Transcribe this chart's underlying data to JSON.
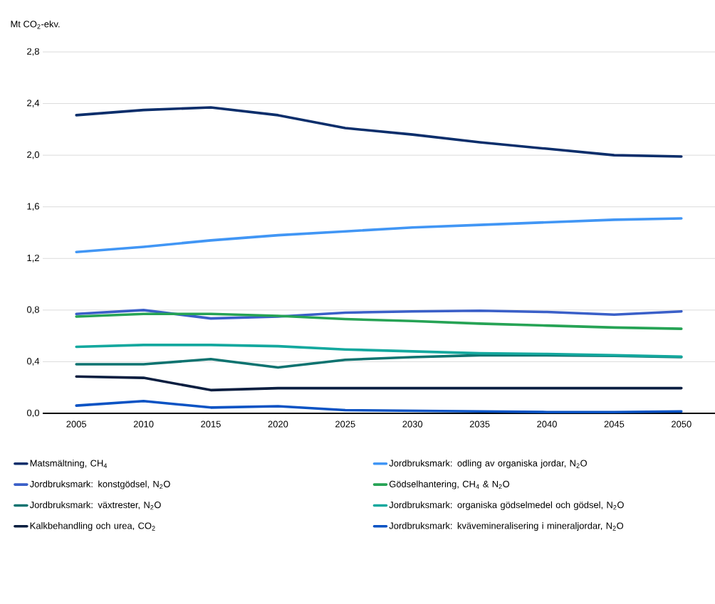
{
  "chart_data": {
    "type": "line",
    "ylabel": "Mt CO$_{2}$-ekv.",
    "categories": [
      "2005",
      "2010",
      "2015",
      "2020",
      "2025",
      "2030",
      "2035",
      "2040",
      "2045",
      "2050"
    ],
    "ylim": [
      0,
      2.8
    ],
    "yticks": [
      {
        "value": 0,
        "label": "0,0"
      },
      {
        "value": 0.4,
        "label": "0,4"
      },
      {
        "value": 0.8,
        "label": "0,8"
      },
      {
        "value": 1.2,
        "label": "1,2"
      },
      {
        "value": 1.6,
        "label": "1,6"
      },
      {
        "value": 2.0,
        "label": "2,0"
      },
      {
        "value": 2.4,
        "label": "2,4"
      },
      {
        "value": 2.8,
        "label": "2,8"
      }
    ],
    "grid": "y",
    "legend": "bottom",
    "marker": "none",
    "line_style": "solid",
    "series": [
      {
        "name": "Matsmältning, CH$_{4}$",
        "color": "#0b2e6b",
        "values": [
          2.31,
          2.35,
          2.37,
          2.31,
          2.21,
          2.16,
          2.1,
          2.05,
          2.0,
          1.99
        ]
      },
      {
        "name": "Jordbruksmark: odling av organiska jordar, N$_{2}$O",
        "color": "#4196f5",
        "values": [
          1.25,
          1.29,
          1.34,
          1.38,
          1.41,
          1.44,
          1.46,
          1.48,
          1.5,
          1.51
        ]
      },
      {
        "name": "Jordbruksmark: konstgödsel, N$_{2}$O",
        "color": "#3a5fc8",
        "values": [
          0.77,
          0.8,
          0.735,
          0.75,
          0.78,
          0.79,
          0.795,
          0.785,
          0.765,
          0.79
        ]
      },
      {
        "name": "Gödselhantering, CH$_{4}$ & N$_{2}$O",
        "color": "#26a355",
        "values": [
          0.75,
          0.77,
          0.77,
          0.755,
          0.73,
          0.715,
          0.695,
          0.68,
          0.665,
          0.655
        ]
      },
      {
        "name": "Jordbruksmark: växtrester, N$_{2}$O",
        "color": "#0e7370",
        "values": [
          0.38,
          0.38,
          0.42,
          0.355,
          0.415,
          0.435,
          0.45,
          0.45,
          0.445,
          0.435
        ]
      },
      {
        "name": "Jordbruksmark: organiska gödselmedel och gödsel, N$_{2}$O",
        "color": "#13a89e",
        "values": [
          0.515,
          0.53,
          0.53,
          0.52,
          0.495,
          0.48,
          0.465,
          0.46,
          0.45,
          0.44
        ]
      },
      {
        "name": "Kalkbehandling och urea, CO$_{2}$",
        "color": "#0a1e40",
        "values": [
          0.285,
          0.275,
          0.18,
          0.195,
          0.195,
          0.195,
          0.195,
          0.195,
          0.195,
          0.195
        ]
      },
      {
        "name": "Jordbruksmark: kvävemineralisering i mineraljordar, N$_{2}$O",
        "color": "#0b53c4",
        "values": [
          0.06,
          0.095,
          0.045,
          0.055,
          0.025,
          0.02,
          0.015,
          0.01,
          0.01,
          0.015
        ]
      }
    ]
  }
}
